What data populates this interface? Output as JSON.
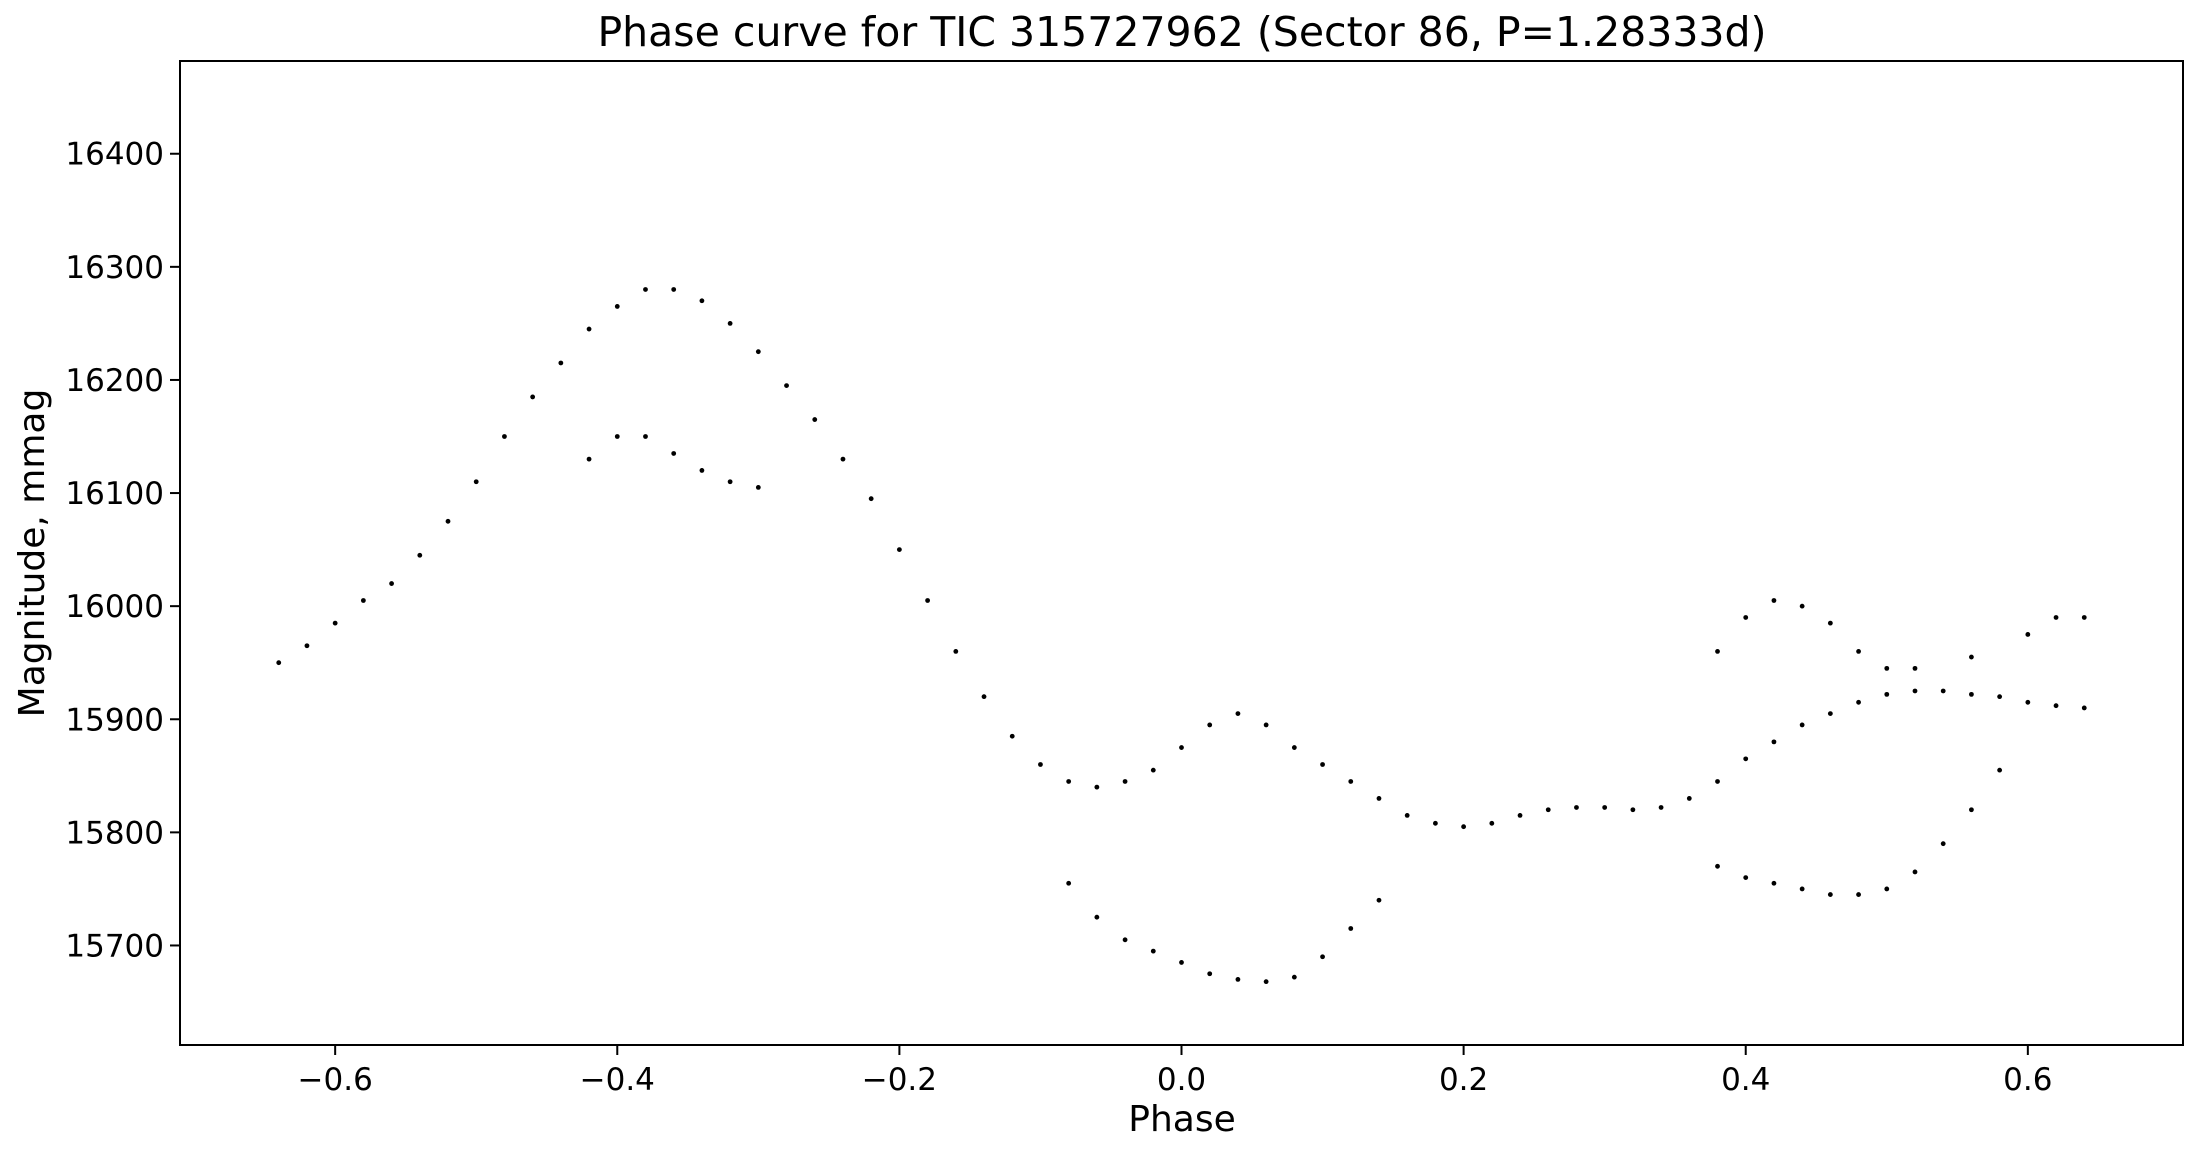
{
  "chart_data": {
    "type": "scatter",
    "title": "Phase curve for TIC 315727962 (Sector 86, P=1.28333d)",
    "xlabel": "Phase",
    "ylabel": "Magnitude, mmag",
    "xlim": [
      -0.71,
      0.71
    ],
    "ylim": [
      15612,
      16482
    ],
    "x_ticks": [
      -0.6,
      -0.4,
      -0.2,
      0.0,
      0.2,
      0.4,
      0.6
    ],
    "x_tick_labels": [
      "−0.6",
      "−0.4",
      "−0.2",
      "0.0",
      "0.2",
      "0.4",
      "0.6"
    ],
    "y_ticks": [
      15700,
      15800,
      15900,
      16000,
      16100,
      16200,
      16300,
      16400
    ],
    "y_tick_labels": [
      "15700",
      "15800",
      "15900",
      "16000",
      "16100",
      "16200",
      "16300",
      "16400"
    ],
    "grid": false,
    "marker_color": "#000000",
    "series": [
      {
        "x": [
          -0.64,
          -0.62,
          -0.6,
          -0.58,
          -0.56,
          -0.54,
          -0.52,
          -0.5,
          -0.48,
          -0.46,
          -0.44,
          -0.42,
          -0.4,
          -0.38,
          -0.36,
          -0.34,
          -0.32,
          -0.3,
          -0.28,
          -0.26,
          -0.24,
          -0.22,
          -0.2,
          -0.18,
          -0.16,
          -0.14,
          -0.12,
          -0.1,
          -0.08,
          -0.06,
          -0.04,
          -0.02,
          0.0,
          0.02,
          0.04,
          0.06,
          0.08,
          0.1,
          0.12,
          0.14,
          0.16,
          0.18,
          0.2,
          0.22,
          0.24,
          0.26,
          0.28,
          0.3,
          0.32,
          0.34,
          0.36,
          0.38,
          0.4,
          0.42,
          0.44,
          0.46,
          0.48,
          0.5,
          0.52,
          0.54,
          0.56,
          0.58,
          0.6,
          0.62,
          0.64
        ],
        "values": [
          15950,
          15965,
          15985,
          16005,
          16020,
          16045,
          16075,
          16110,
          16150,
          16185,
          16215,
          16245,
          16265,
          16280,
          16280,
          16270,
          16250,
          16225,
          16195,
          16165,
          16130,
          16095,
          16050,
          16005,
          15960,
          15920,
          15885,
          15860,
          15845,
          15840,
          15845,
          15855,
          15875,
          15895,
          15905,
          15895,
          15875,
          15860,
          15845,
          15830,
          15815,
          15808,
          15805,
          15808,
          15815,
          15820,
          15822,
          15822,
          15820,
          15822,
          15830,
          15845,
          15865,
          15880,
          15895,
          15905,
          15915,
          15922,
          15925,
          15925,
          15922,
          15920,
          15915,
          15912,
          15910
        ]
      },
      {
        "x": [
          -0.42,
          -0.4,
          -0.38,
          -0.36,
          -0.34,
          -0.32,
          -0.3
        ],
        "values": [
          16130,
          16150,
          16150,
          16135,
          16120,
          16110,
          16105
        ]
      },
      {
        "x": [
          -0.08,
          -0.06,
          -0.04,
          -0.02,
          0.0,
          0.02,
          0.04,
          0.06,
          0.08,
          0.1,
          0.12,
          0.14
        ],
        "values": [
          15755,
          15725,
          15705,
          15695,
          15685,
          15675,
          15670,
          15668,
          15672,
          15690,
          15715,
          15740
        ]
      },
      {
        "x": [
          0.38,
          0.4,
          0.42,
          0.44,
          0.46,
          0.48,
          0.5,
          0.52,
          0.54,
          0.56,
          0.58
        ],
        "values": [
          15770,
          15760,
          15755,
          15750,
          15745,
          15745,
          15750,
          15765,
          15790,
          15820,
          15855
        ]
      },
      {
        "x": [
          0.38,
          0.4,
          0.42,
          0.44,
          0.46,
          0.48,
          0.5,
          0.52,
          0.56,
          0.6,
          0.62,
          0.64
        ],
        "values": [
          15960,
          15990,
          16005,
          16000,
          15985,
          15960,
          15945,
          15945,
          15955,
          15975,
          15990,
          15990
        ]
      }
    ]
  }
}
